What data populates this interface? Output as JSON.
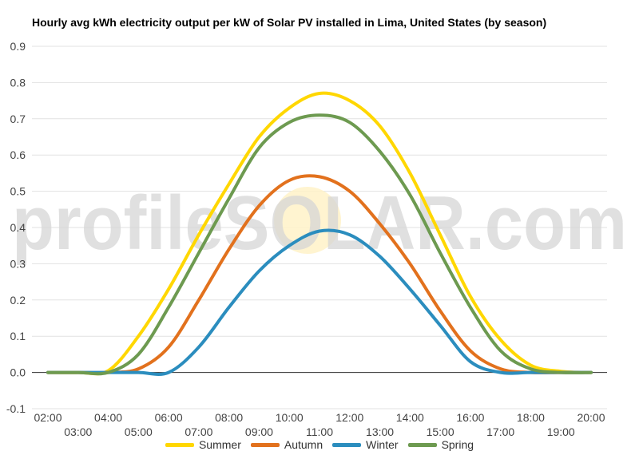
{
  "chart_data": {
    "type": "line",
    "title": "Hourly avg kWh electricity output per kW of Solar PV installed in Lima, United States (by season)",
    "watermark": "profileSOLAR.com",
    "xlabel": "",
    "ylabel": "",
    "x": [
      "02:00",
      "03:00",
      "04:00",
      "05:00",
      "06:00",
      "07:00",
      "08:00",
      "09:00",
      "10:00",
      "11:00",
      "12:00",
      "13:00",
      "14:00",
      "15:00",
      "16:00",
      "17:00",
      "18:00",
      "19:00",
      "20:00"
    ],
    "ylim": [
      -0.1,
      0.9
    ],
    "yticks": [
      "-0.1",
      "0.0",
      "0.1",
      "0.2",
      "0.3",
      "0.4",
      "0.5",
      "0.6",
      "0.7",
      "0.8",
      "0.9"
    ],
    "grid": true,
    "legend_position": "bottom",
    "series": [
      {
        "name": "Summer",
        "color": "#FFD700",
        "values": [
          0,
          0,
          0.005,
          0.1,
          0.23,
          0.38,
          0.52,
          0.65,
          0.73,
          0.77,
          0.75,
          0.68,
          0.55,
          0.38,
          0.21,
          0.09,
          0.02,
          0.003,
          0
        ]
      },
      {
        "name": "Autumn",
        "color": "#E2711D",
        "values": [
          0,
          0,
          0,
          0.01,
          0.07,
          0.2,
          0.34,
          0.46,
          0.53,
          0.54,
          0.5,
          0.41,
          0.3,
          0.17,
          0.06,
          0.01,
          0,
          0,
          0
        ]
      },
      {
        "name": "Winter",
        "color": "#2B8DBE",
        "values": [
          0,
          0,
          0,
          0,
          0,
          0.07,
          0.18,
          0.28,
          0.35,
          0.39,
          0.38,
          0.32,
          0.23,
          0.13,
          0.03,
          0,
          0,
          0,
          0
        ]
      },
      {
        "name": "Spring",
        "color": "#6D9A50",
        "values": [
          0,
          0,
          0,
          0.05,
          0.18,
          0.33,
          0.48,
          0.62,
          0.69,
          0.71,
          0.69,
          0.61,
          0.49,
          0.33,
          0.18,
          0.06,
          0.01,
          0,
          0
        ]
      }
    ]
  }
}
